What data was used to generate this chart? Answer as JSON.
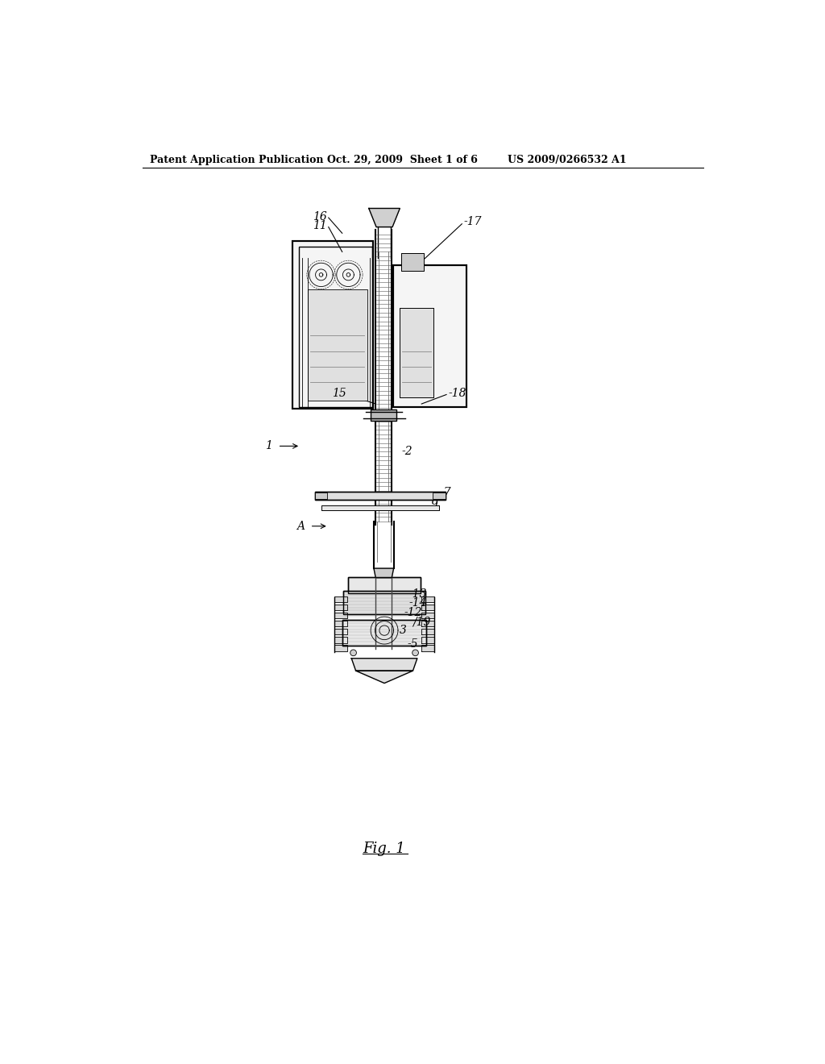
{
  "bg_color": "#ffffff",
  "header_text": "Patent Application Publication",
  "header_date": "Oct. 29, 2009  Sheet 1 of 6",
  "header_patent": "US 2009/0266532 A1",
  "fig_label": "Fig. 1"
}
